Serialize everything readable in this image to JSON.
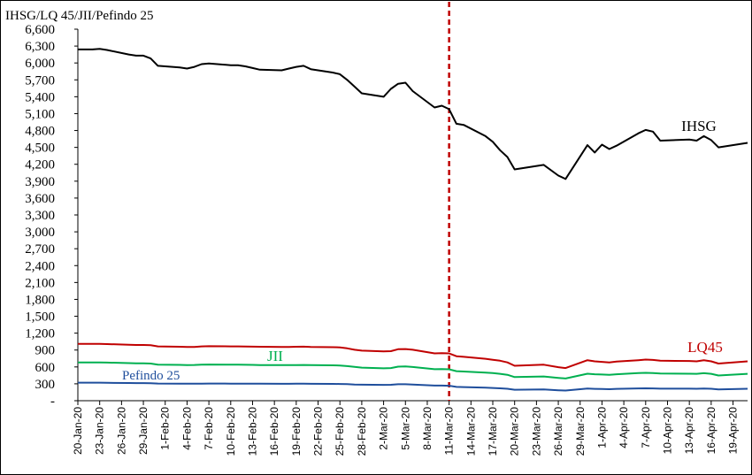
{
  "chart_data": {
    "type": "line",
    "title": "IHSG/LQ 45/JII/Pefindo 25",
    "ylim": [
      0,
      6600
    ],
    "ytick_values": [
      0,
      300,
      600,
      900,
      1200,
      1500,
      1800,
      2100,
      2400,
      2700,
      3000,
      3300,
      3600,
      3900,
      4200,
      4500,
      4800,
      5100,
      5400,
      5700,
      6000,
      6300,
      6600
    ],
    "ytick_labels": [
      "-",
      "300",
      "600",
      "900",
      "1,200",
      "1,500",
      "1,800",
      "2,100",
      "2,400",
      "2,700",
      "3,000",
      "3,300",
      "3,600",
      "3,900",
      "4,200",
      "4,500",
      "4,800",
      "5,100",
      "5,400",
      "5,700",
      "6,000",
      "6,300",
      "6,600"
    ],
    "x_start": "2020-01-20",
    "x_end": "2020-04-21",
    "xtick_dates": [
      "2020-01-20",
      "2020-01-23",
      "2020-01-26",
      "2020-01-29",
      "2020-02-01",
      "2020-02-04",
      "2020-02-07",
      "2020-02-10",
      "2020-02-13",
      "2020-02-16",
      "2020-02-19",
      "2020-02-22",
      "2020-02-25",
      "2020-02-28",
      "2020-03-02",
      "2020-03-05",
      "2020-03-08",
      "2020-03-11",
      "2020-03-14",
      "2020-03-17",
      "2020-03-20",
      "2020-03-23",
      "2020-03-26",
      "2020-03-29",
      "2020-04-01",
      "2020-04-04",
      "2020-04-07",
      "2020-04-10",
      "2020-04-13",
      "2020-04-16",
      "2020-04-19"
    ],
    "xtick_labels": [
      "20-Jan-20",
      "23-Jan-20",
      "26-Jan-20",
      "29-Jan-20",
      "1-Feb-20",
      "4-Feb-20",
      "7-Feb-20",
      "10-Feb-20",
      "13-Feb-20",
      "16-Feb-20",
      "19-Feb-20",
      "22-Feb-20",
      "25-Feb-20",
      "28-Feb-20",
      "2-Mar-20",
      "5-Mar-20",
      "8-Mar-20",
      "11-Mar-20",
      "14-Mar-20",
      "17-Mar-20",
      "20-Mar-20",
      "23-Mar-20",
      "26-Mar-20",
      "29-Mar-20",
      "1-Apr-20",
      "4-Apr-20",
      "7-Apr-20",
      "10-Apr-20",
      "13-Apr-20",
      "16-Apr-20",
      "19-Apr-20"
    ],
    "vline": {
      "x": "2020-03-11",
      "color": "#c00000",
      "style": "dashed"
    },
    "x": [
      "2020-01-20",
      "2020-01-22",
      "2020-01-23",
      "2020-01-24",
      "2020-01-27",
      "2020-01-28",
      "2020-01-29",
      "2020-01-30",
      "2020-01-31",
      "2020-02-03",
      "2020-02-04",
      "2020-02-05",
      "2020-02-06",
      "2020-02-07",
      "2020-02-10",
      "2020-02-11",
      "2020-02-12",
      "2020-02-13",
      "2020-02-14",
      "2020-02-17",
      "2020-02-18",
      "2020-02-19",
      "2020-02-20",
      "2020-02-21",
      "2020-02-24",
      "2020-02-25",
      "2020-02-26",
      "2020-02-27",
      "2020-02-28",
      "2020-03-02",
      "2020-03-03",
      "2020-03-04",
      "2020-03-05",
      "2020-03-06",
      "2020-03-09",
      "2020-03-10",
      "2020-03-11",
      "2020-03-12",
      "2020-03-13",
      "2020-03-16",
      "2020-03-17",
      "2020-03-18",
      "2020-03-19",
      "2020-03-20",
      "2020-03-24",
      "2020-03-26",
      "2020-03-27",
      "2020-03-30",
      "2020-03-31",
      "2020-04-01",
      "2020-04-02",
      "2020-04-03",
      "2020-04-06",
      "2020-04-07",
      "2020-04-08",
      "2020-04-09",
      "2020-04-13",
      "2020-04-14",
      "2020-04-15",
      "2020-04-16",
      "2020-04-17",
      "2020-04-21"
    ],
    "series": [
      {
        "name": "IHSG",
        "color": "#000000",
        "values": [
          6240,
          6240,
          6250,
          6230,
          6150,
          6130,
          6130,
          6080,
          5950,
          5920,
          5900,
          5930,
          5980,
          5990,
          5960,
          5960,
          5940,
          5910,
          5880,
          5870,
          5900,
          5930,
          5950,
          5890,
          5830,
          5800,
          5700,
          5580,
          5460,
          5400,
          5540,
          5630,
          5650,
          5500,
          5210,
          5240,
          5180,
          4920,
          4900,
          4700,
          4600,
          4450,
          4330,
          4110,
          4190,
          4000,
          3940,
          4540,
          4410,
          4550,
          4470,
          4530,
          4750,
          4810,
          4780,
          4620,
          4640,
          4620,
          4700,
          4630,
          4500,
          4580
        ]
      },
      {
        "name": "LQ45",
        "color": "#c00000",
        "values": [
          1010,
          1010,
          1010,
          1005,
          995,
          990,
          990,
          985,
          965,
          958,
          955,
          955,
          965,
          968,
          965,
          965,
          963,
          960,
          958,
          955,
          955,
          958,
          960,
          955,
          950,
          948,
          930,
          905,
          890,
          875,
          880,
          915,
          918,
          905,
          840,
          845,
          840,
          790,
          780,
          745,
          728,
          710,
          680,
          620,
          640,
          595,
          580,
          720,
          700,
          690,
          680,
          695,
          720,
          730,
          725,
          710,
          705,
          700,
          718,
          700,
          660,
          700
        ]
      },
      {
        "name": "JII",
        "color": "#00b050",
        "values": [
          680,
          680,
          680,
          678,
          668,
          665,
          664,
          660,
          640,
          636,
          634,
          635,
          640,
          642,
          640,
          640,
          638,
          636,
          634,
          632,
          632,
          634,
          635,
          632,
          628,
          625,
          615,
          600,
          588,
          575,
          580,
          605,
          608,
          598,
          560,
          562,
          558,
          525,
          518,
          500,
          490,
          478,
          460,
          420,
          430,
          405,
          395,
          480,
          470,
          465,
          460,
          470,
          490,
          495,
          492,
          482,
          480,
          478,
          488,
          478,
          448,
          478
        ]
      },
      {
        "name": "Pefindo 25",
        "color": "#1f4e9c",
        "values": [
          320,
          320,
          320,
          318,
          314,
          312,
          312,
          310,
          305,
          303,
          302,
          302,
          304,
          305,
          304,
          304,
          303,
          302,
          301,
          300,
          300,
          301,
          302,
          300,
          298,
          297,
          294,
          288,
          285,
          282,
          283,
          292,
          292,
          288,
          268,
          269,
          266,
          245,
          242,
          232,
          226,
          220,
          212,
          195,
          200,
          185,
          180,
          215,
          210,
          208,
          205,
          210,
          218,
          220,
          219,
          214,
          213,
          212,
          216,
          212,
          200,
          212
        ]
      }
    ],
    "series_labels": [
      {
        "series": "IHSG",
        "text": "IHSG"
      },
      {
        "series": "LQ45",
        "text": "LQ45"
      },
      {
        "series": "JII",
        "text": "JII"
      },
      {
        "series": "Pefindo 25",
        "text": "Pefindo 25"
      }
    ],
    "grid": false,
    "legend": "inline labels"
  }
}
